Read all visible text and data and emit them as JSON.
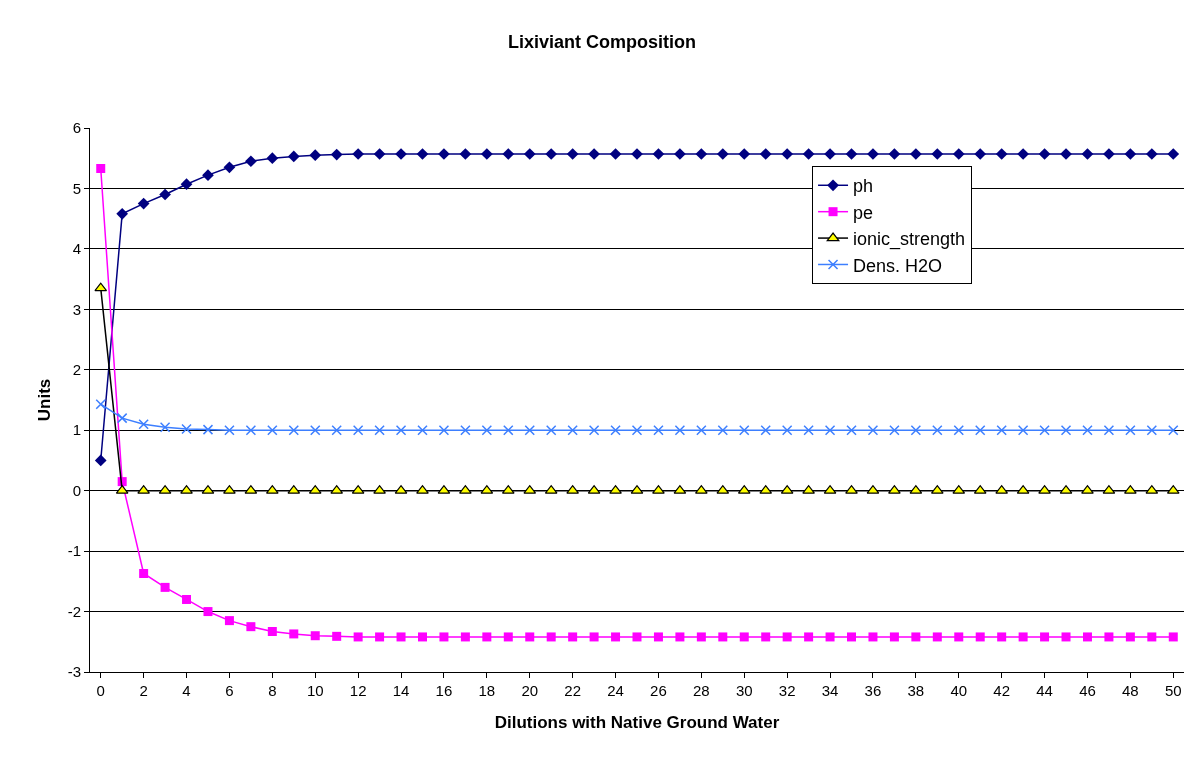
{
  "chart_data": {
    "type": "line",
    "title": "Lixiviant Composition",
    "xlabel": "Dilutions with Native Ground Water",
    "ylabel": "Units",
    "x": [
      0,
      1,
      2,
      3,
      4,
      5,
      6,
      7,
      8,
      9,
      10,
      11,
      12,
      13,
      14,
      15,
      16,
      17,
      18,
      19,
      20,
      21,
      22,
      23,
      24,
      25,
      26,
      27,
      28,
      29,
      30,
      31,
      32,
      33,
      34,
      35,
      36,
      37,
      38,
      39,
      40,
      41,
      42,
      43,
      44,
      45,
      46,
      47,
      48,
      49,
      50
    ],
    "xlim": [
      -0.5,
      50.5
    ],
    "xticks": [
      0,
      2,
      4,
      6,
      8,
      10,
      12,
      14,
      16,
      18,
      20,
      22,
      24,
      26,
      28,
      30,
      32,
      34,
      36,
      38,
      40,
      42,
      44,
      46,
      48,
      50
    ],
    "ylim": [
      -3,
      6
    ],
    "yticks": [
      -3,
      -2,
      -1,
      0,
      1,
      2,
      3,
      4,
      5,
      6
    ],
    "grid": "y",
    "legend": "top right",
    "series": [
      {
        "name": "ph",
        "color": "#000080",
        "marker": "diamond",
        "values": [
          0.5,
          4.58,
          4.75,
          4.9,
          5.07,
          5.22,
          5.35,
          5.45,
          5.5,
          5.53,
          5.55,
          5.56,
          5.57,
          5.57,
          5.57,
          5.57,
          5.57,
          5.57,
          5.57,
          5.57,
          5.57,
          5.57,
          5.57,
          5.57,
          5.57,
          5.57,
          5.57,
          5.57,
          5.57,
          5.57,
          5.57,
          5.57,
          5.57,
          5.57,
          5.57,
          5.57,
          5.57,
          5.57,
          5.57,
          5.57,
          5.57,
          5.57,
          5.57,
          5.57,
          5.57,
          5.57,
          5.57,
          5.57,
          5.57,
          5.57,
          5.57
        ]
      },
      {
        "name": "pe",
        "color": "#ff00ff",
        "marker": "square",
        "values": [
          5.33,
          0.15,
          -1.37,
          -1.6,
          -1.8,
          -2.0,
          -2.15,
          -2.25,
          -2.33,
          -2.37,
          -2.4,
          -2.41,
          -2.42,
          -2.42,
          -2.42,
          -2.42,
          -2.42,
          -2.42,
          -2.42,
          -2.42,
          -2.42,
          -2.42,
          -2.42,
          -2.42,
          -2.42,
          -2.42,
          -2.42,
          -2.42,
          -2.42,
          -2.42,
          -2.42,
          -2.42,
          -2.42,
          -2.42,
          -2.42,
          -2.42,
          -2.42,
          -2.42,
          -2.42,
          -2.42,
          -2.42,
          -2.42,
          -2.42,
          -2.42,
          -2.42,
          -2.42,
          -2.42,
          -2.42,
          -2.42,
          -2.42,
          -2.42
        ]
      },
      {
        "name": "ionic_strength",
        "color": "#000000",
        "marker": "triangle",
        "values": [
          3.35,
          0,
          0,
          0,
          0,
          0,
          0,
          0,
          0,
          0,
          0,
          0,
          0,
          0,
          0,
          0,
          0,
          0,
          0,
          0,
          0,
          0,
          0,
          0,
          0,
          0,
          0,
          0,
          0,
          0,
          0,
          0,
          0,
          0,
          0,
          0,
          0,
          0,
          0,
          0,
          0,
          0,
          0,
          0,
          0,
          0,
          0,
          0,
          0,
          0,
          0
        ]
      },
      {
        "name": "Dens. H2O",
        "color": "#3d7fff",
        "marker": "cross",
        "values": [
          1.43,
          1.2,
          1.1,
          1.05,
          1.02,
          1.01,
          1.0,
          1.0,
          1.0,
          1.0,
          1.0,
          1.0,
          1.0,
          1.0,
          1.0,
          1.0,
          1.0,
          1.0,
          1.0,
          1.0,
          1.0,
          1.0,
          1.0,
          1.0,
          1.0,
          1.0,
          1.0,
          1.0,
          1.0,
          1.0,
          1.0,
          1.0,
          1.0,
          1.0,
          1.0,
          1.0,
          1.0,
          1.0,
          1.0,
          1.0,
          1.0,
          1.0,
          1.0,
          1.0,
          1.0,
          1.0,
          1.0,
          1.0,
          1.0,
          1.0,
          1.0
        ]
      }
    ]
  }
}
